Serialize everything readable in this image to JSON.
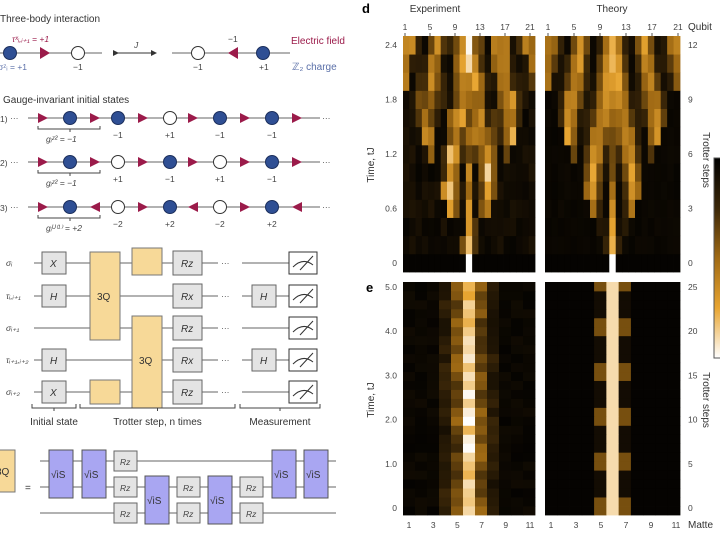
{
  "panel_a": {
    "title": "Three-body interaction",
    "tau_label": "τˣᵢ,ᵢ₊₁ = +1",
    "sigma_label": "σᶻᵢ = +1",
    "coupling_label": "J",
    "left_charge": "−1",
    "right_field": "−1",
    "right_charges": [
      "−1",
      "+1"
    ],
    "electric_field_label": "Electric field",
    "charge_label": "ℤ₂ charge",
    "colors": {
      "field": "#9b1b4a",
      "charge_filled": "#2f4f94",
      "charge_text": "#5a6fa8"
    }
  },
  "panel_b": {
    "title": "Gauge-invariant initial states",
    "rows": [
      {
        "label": "1)",
        "g_label": "gᵢᶻ² = −1",
        "circles": [
          "blue",
          "blue",
          "white",
          "blue",
          "blue"
        ],
        "arrows": [
          "r",
          "r",
          "r",
          "r",
          "r",
          "r"
        ],
        "charges": [
          "−1",
          "+1",
          "−1",
          "−1"
        ]
      },
      {
        "label": "2)",
        "g_label": "gᵢᶻ² = −1",
        "circles": [
          "blue",
          "white",
          "blue",
          "white",
          "blue"
        ],
        "arrows": [
          "r",
          "r",
          "r",
          "r",
          "r",
          "r"
        ],
        "charges": [
          "+1",
          "−1",
          "+1",
          "−1"
        ]
      },
      {
        "label": "3)",
        "g_label": "gᵢᵁ⁽¹⁾ = +2",
        "circles": [
          "blue",
          "white",
          "blue",
          "white",
          "blue"
        ],
        "arrows": [
          "r",
          "l",
          "r",
          "l",
          "r",
          "l"
        ],
        "charges": [
          "−2",
          "+2",
          "−2",
          "+2"
        ]
      }
    ],
    "ellipsis": "···"
  },
  "panel_c": {
    "wires": [
      "σᵢ",
      "τᵢ,ᵢ₊₁",
      "σᵢ₊₁",
      "τᵢ₊₁,ᵢ₊₂",
      "σᵢ₊₂"
    ],
    "init_gates": [
      "X",
      "H",
      "",
      "H",
      "X"
    ],
    "rotations": [
      "Rz",
      "Rx",
      "Rz",
      "Rx",
      "Rz"
    ],
    "meas_basis": [
      "",
      "H",
      "",
      "H",
      ""
    ],
    "three_q": "3Q",
    "dots": "···",
    "brackets": [
      "Initial state",
      "Trotter step, n times",
      "Measurement"
    ]
  },
  "decomposition": {
    "lhs": "3Q",
    "equals": "=",
    "sqrt_iswap": "√iS",
    "rz": "Rz"
  },
  "panel_d": {
    "label": "d",
    "titles": [
      "Experiment",
      "Theory"
    ],
    "x_ticks": [
      "1",
      "5",
      "9",
      "13",
      "17",
      "21"
    ],
    "x_label": "Qubit",
    "y_ticks": [
      "2.4",
      "1.8",
      "1.2",
      "0.6",
      "0"
    ],
    "y_label": "Time, tJ",
    "y2_ticks": [
      "12",
      "9",
      "6",
      "3",
      "0"
    ],
    "y2_label": "Trotter steps"
  },
  "panel_e": {
    "label": "e",
    "x_ticks": [
      "1",
      "3",
      "5",
      "7",
      "9",
      "11"
    ],
    "x_label": "Matte",
    "y_ticks": [
      "5.0",
      "4.0",
      "3.0",
      "2.0",
      "1.0",
      "0"
    ],
    "y_label": "Time, tJ",
    "y2_ticks": [
      "25",
      "20",
      "15",
      "10",
      "5",
      "0"
    ],
    "y2_label": "Trotter steps"
  },
  "colormap": [
    "#000000",
    "#3a2608",
    "#a06a14",
    "#e8a531",
    "#ffffff"
  ]
}
